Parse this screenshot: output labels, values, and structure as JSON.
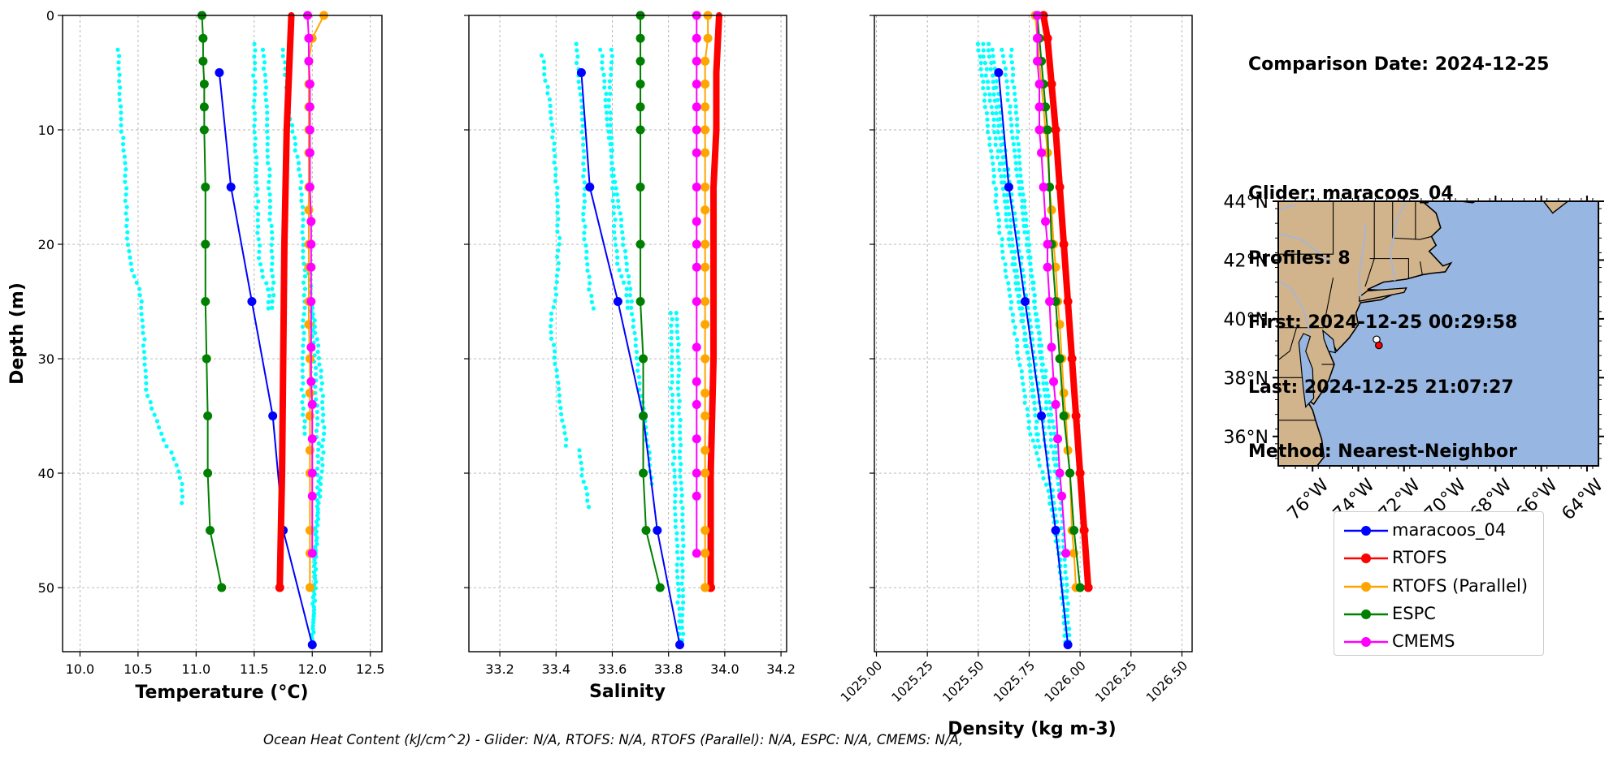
{
  "chart_data": [
    {
      "type": "scatter",
      "xlabel": "Temperature (°C)",
      "ylabel": "Depth (m)",
      "xlim": [
        9.85,
        12.6
      ],
      "ylim": [
        55.6,
        0
      ],
      "xticks": [
        "10.0",
        "10.5",
        "11.0",
        "11.5",
        "12.0",
        "12.5"
      ],
      "yticks": [
        "0",
        "10",
        "20",
        "30",
        "40",
        "50"
      ],
      "grid": true,
      "series": [
        {
          "name": "maracoos_04",
          "color": "#0000ff",
          "marker": "o",
          "width": 2,
          "x": [
            11.2,
            11.3,
            11.48,
            11.66,
            11.75,
            12.0
          ],
          "y": [
            5,
            15,
            25,
            35,
            45,
            55
          ]
        },
        {
          "name": "RTOFS",
          "color": "#ff0000",
          "marker": "none",
          "width": 8,
          "x": [
            11.82,
            11.8,
            11.78,
            11.77,
            11.76,
            11.75,
            11.74,
            11.73,
            11.72
          ],
          "y": [
            0,
            5,
            10,
            15,
            20,
            30,
            40,
            45,
            50
          ]
        },
        {
          "name": "RTOFS",
          "color": "#ff0000",
          "marker": "end",
          "width": 0,
          "x": [
            11.72
          ],
          "y": [
            50
          ]
        },
        {
          "name": "RTOFS (Parallel)",
          "color": "#ffa500",
          "marker": "o",
          "width": 2,
          "x": [
            12.1,
            12.0,
            11.97,
            11.97,
            11.97,
            11.97,
            11.97,
            11.97,
            11.97,
            11.97,
            11.97,
            11.97,
            11.97,
            11.98,
            11.98,
            11.98,
            11.98,
            11.98,
            11.98,
            11.98,
            11.98
          ],
          "y": [
            0,
            2,
            4,
            6,
            8,
            10,
            12,
            15,
            17,
            20,
            22,
            25,
            27,
            30,
            33,
            35,
            38,
            40,
            45,
            47,
            50
          ]
        },
        {
          "name": "ESPC",
          "color": "#008000",
          "marker": "o",
          "width": 2,
          "x": [
            11.05,
            11.06,
            11.06,
            11.07,
            11.07,
            11.07,
            11.08,
            11.08,
            11.08,
            11.09,
            11.1,
            11.1,
            11.12,
            11.22
          ],
          "y": [
            0,
            2,
            4,
            6,
            8,
            10,
            15,
            20,
            25,
            30,
            35,
            40,
            45,
            50
          ]
        },
        {
          "name": "CMEMS",
          "color": "#ff00ff",
          "marker": "o",
          "width": 2,
          "x": [
            11.96,
            11.97,
            11.97,
            11.98,
            11.98,
            11.98,
            11.98,
            11.98,
            11.99,
            11.99,
            11.99,
            11.99,
            11.99,
            11.99,
            12.0,
            12.0,
            12.0,
            12.0,
            12.0
          ],
          "y": [
            0,
            2,
            4,
            6,
            8,
            10,
            12,
            15,
            18,
            20,
            22,
            25,
            29,
            32,
            34,
            37,
            40,
            42,
            47
          ]
        }
      ]
    },
    {
      "type": "scatter",
      "xlabel": "Salinity",
      "xlim": [
        33.09,
        34.22
      ],
      "ylim": [
        55.6,
        0
      ],
      "xticks": [
        "33.2",
        "33.4",
        "33.6",
        "33.8",
        "34.0",
        "34.2"
      ],
      "grid": true,
      "series": [
        {
          "name": "maracoos_04",
          "color": "#0000ff",
          "marker": "o",
          "width": 2,
          "x": [
            33.49,
            33.52,
            33.62,
            33.71,
            33.76,
            33.84
          ],
          "y": [
            5,
            15,
            25,
            35,
            45,
            55
          ]
        },
        {
          "name": "RTOFS",
          "color": "#ff0000",
          "marker": "none",
          "width": 8,
          "x": [
            33.98,
            33.97,
            33.97,
            33.96,
            33.96,
            33.96,
            33.95,
            33.95,
            33.95
          ],
          "y": [
            0,
            5,
            10,
            15,
            20,
            30,
            40,
            45,
            50
          ]
        },
        {
          "name": "RTOFS",
          "color": "#ff0000",
          "marker": "end",
          "width": 0,
          "x": [
            33.95
          ],
          "y": [
            50
          ]
        },
        {
          "name": "RTOFS (Parallel)",
          "color": "#ffa500",
          "marker": "o",
          "width": 2,
          "x": [
            33.94,
            33.94,
            33.93,
            33.93,
            33.93,
            33.93,
            33.93,
            33.93,
            33.93,
            33.93,
            33.93,
            33.93,
            33.93,
            33.93,
            33.93,
            33.93,
            33.93,
            33.93,
            33.93,
            33.93,
            33.93
          ],
          "y": [
            0,
            2,
            4,
            6,
            8,
            10,
            12,
            15,
            17,
            20,
            22,
            25,
            27,
            30,
            33,
            35,
            38,
            40,
            45,
            47,
            50
          ]
        },
        {
          "name": "ESPC",
          "color": "#008000",
          "marker": "o",
          "width": 2,
          "x": [
            33.7,
            33.7,
            33.7,
            33.7,
            33.7,
            33.7,
            33.7,
            33.7,
            33.7,
            33.71,
            33.71,
            33.71,
            33.72,
            33.77
          ],
          "y": [
            0,
            2,
            4,
            6,
            8,
            10,
            15,
            20,
            25,
            30,
            35,
            40,
            45,
            50
          ]
        },
        {
          "name": "CMEMS",
          "color": "#ff00ff",
          "marker": "o",
          "width": 2,
          "x": [
            33.9,
            33.9,
            33.9,
            33.9,
            33.9,
            33.9,
            33.9,
            33.9,
            33.9,
            33.9,
            33.9,
            33.9,
            33.9,
            33.9,
            33.9,
            33.9,
            33.9,
            33.9,
            33.9
          ],
          "y": [
            0,
            2,
            4,
            6,
            8,
            10,
            12,
            15,
            18,
            20,
            22,
            25,
            29,
            32,
            34,
            37,
            40,
            42,
            47
          ]
        }
      ]
    },
    {
      "type": "scatter",
      "xlabel": "Density (kg m-3)",
      "xlim": [
        1024.99,
        1026.55
      ],
      "ylim": [
        55.6,
        0
      ],
      "xticks": [
        "1025.00",
        "1025.25",
        "1025.50",
        "1025.75",
        "1026.00",
        "1026.25",
        "1026.50"
      ],
      "grid": true,
      "series": [
        {
          "name": "maracoos_04",
          "color": "#0000ff",
          "marker": "o",
          "width": 2,
          "x": [
            1025.6,
            1025.65,
            1025.73,
            1025.81,
            1025.88,
            1025.94
          ],
          "y": [
            5,
            15,
            25,
            35,
            45,
            55
          ]
        },
        {
          "name": "RTOFS",
          "color": "#ff0000",
          "marker": "o",
          "width": 8,
          "x": [
            1025.82,
            1025.84,
            1025.86,
            1025.88,
            1025.9,
            1025.92,
            1025.94,
            1025.96,
            1025.98,
            1026.0,
            1026.02,
            1026.04
          ],
          "y": [
            0,
            2,
            6,
            10,
            15,
            20,
            25,
            30,
            35,
            40,
            45,
            50
          ]
        },
        {
          "name": "RTOFS (Parallel)",
          "color": "#ffa500",
          "marker": "o",
          "width": 2,
          "x": [
            1025.78,
            1025.79,
            1025.8,
            1025.81,
            1025.82,
            1025.83,
            1025.84,
            1025.85,
            1025.86,
            1025.87,
            1025.88,
            1025.89,
            1025.9,
            1025.91,
            1025.92,
            1025.93,
            1025.94,
            1025.95,
            1025.96,
            1025.97,
            1025.98
          ],
          "y": [
            0,
            2,
            4,
            6,
            8,
            10,
            12,
            15,
            17,
            20,
            22,
            25,
            27,
            30,
            33,
            35,
            38,
            40,
            45,
            47,
            50
          ]
        },
        {
          "name": "ESPC",
          "color": "#008000",
          "marker": "o",
          "width": 2,
          "x": [
            1025.79,
            1025.8,
            1025.81,
            1025.82,
            1025.83,
            1025.84,
            1025.85,
            1025.86,
            1025.88,
            1025.9,
            1025.92,
            1025.95,
            1025.97,
            1026.0
          ],
          "y": [
            0,
            2,
            4,
            6,
            8,
            10,
            15,
            20,
            25,
            30,
            35,
            40,
            45,
            50
          ]
        },
        {
          "name": "CMEMS",
          "color": "#ff00ff",
          "marker": "o",
          "width": 2,
          "x": [
            1025.79,
            1025.79,
            1025.79,
            1025.8,
            1025.8,
            1025.8,
            1025.81,
            1025.82,
            1025.83,
            1025.84,
            1025.84,
            1025.85,
            1025.86,
            1025.87,
            1025.88,
            1025.89,
            1025.9,
            1025.91,
            1025.93
          ],
          "y": [
            0,
            2,
            4,
            6,
            8,
            10,
            12,
            15,
            18,
            20,
            22,
            25,
            29,
            32,
            34,
            37,
            40,
            42,
            47
          ]
        }
      ]
    }
  ],
  "glider_scatter_color": "#00ffff",
  "info": {
    "lines": [
      "Comparison Date: 2024-12-25",
      "",
      "Glider: maracoos_04",
      "Profiles: 8",
      "First: 2024-12-25 00:29:58",
      "Last: 2024-12-25 21:07:27",
      "Method: Nearest-Neighbor"
    ]
  },
  "map": {
    "lat_range": [
      35,
      44
    ],
    "lon_range": [
      -77.5,
      -63.5
    ],
    "lat_ticks": [
      "44°N",
      "42°N",
      "40°N",
      "38°N",
      "36°N"
    ],
    "lon_ticks": [
      "76°W",
      "74°W",
      "72°W",
      "70°W",
      "68°W",
      "66°W",
      "64°W"
    ],
    "land_color": "#d2b48c",
    "ocean_color": "#97b6e1",
    "markers": [
      {
        "lon": -73.2,
        "lat": 39.3,
        "color": "#ffffff"
      },
      {
        "lon": -73.1,
        "lat": 39.1,
        "color": "#ff0000"
      }
    ]
  },
  "legend": {
    "items": [
      {
        "label": "maracoos_04",
        "color": "#0000ff"
      },
      {
        "label": "RTOFS",
        "color": "#ff0000"
      },
      {
        "label": "RTOFS (Parallel)",
        "color": "#ffa500"
      },
      {
        "label": "ESPC",
        "color": "#008000"
      },
      {
        "label": "CMEMS",
        "color": "#ff00ff"
      }
    ]
  },
  "footer": "Ocean Heat Content (kJ/cm^2) - Glider: N/A,  RTOFS: N/A,  RTOFS (Parallel): N/A,  ESPC: N/A,  CMEMS: N/A,"
}
